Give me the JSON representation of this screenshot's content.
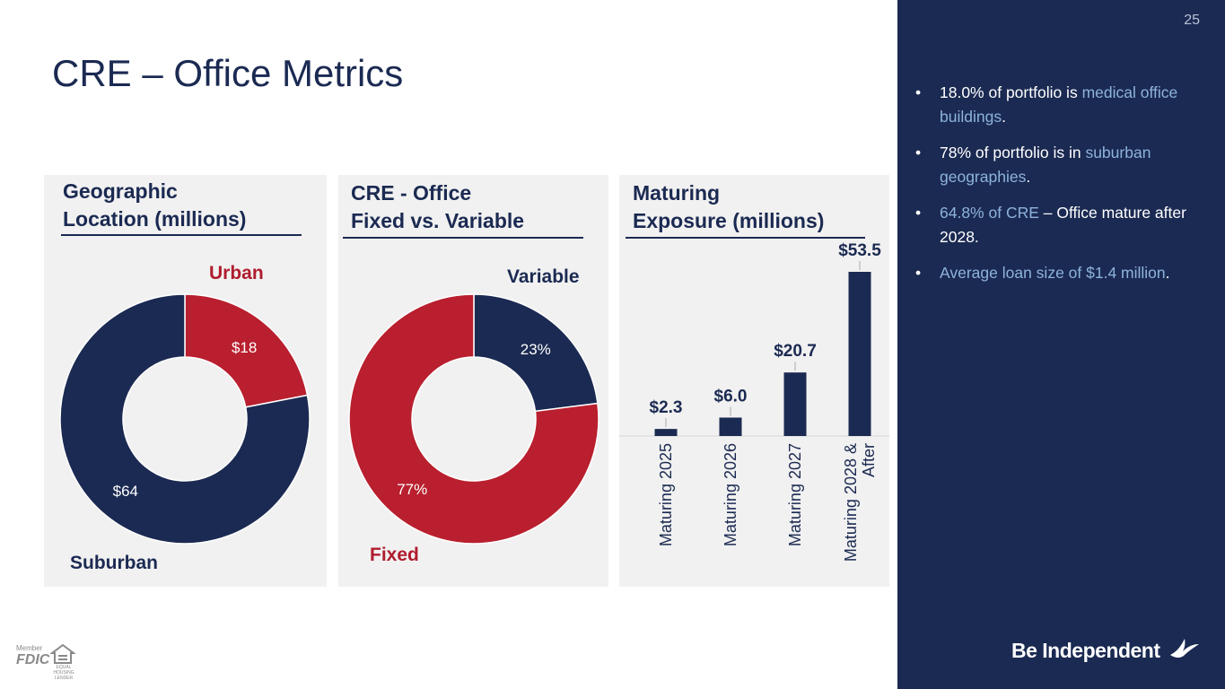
{
  "title": "CRE – Office Metrics",
  "page_number": "25",
  "panels": {
    "geo": {
      "title_line1": "Geographic",
      "title_line2": "Location (millions)",
      "label_urban": "Urban",
      "label_suburban": "Suburban"
    },
    "fixed": {
      "title_line1": "CRE - Office",
      "title_line2": "Fixed vs. Variable",
      "label_variable": "Variable",
      "label_fixed": "Fixed"
    },
    "maturing": {
      "title_line1": "Maturing",
      "title_line2": "Exposure (millions)"
    }
  },
  "chart_data": [
    {
      "type": "pie",
      "title": "Geographic Location (millions)",
      "categories": [
        "Urban",
        "Suburban"
      ],
      "values": [
        18,
        64
      ],
      "data_labels": [
        "$18",
        "$64"
      ],
      "colors": [
        "#b91f2e",
        "#1b2a52"
      ],
      "donut": true
    },
    {
      "type": "pie",
      "title": "CRE - Office Fixed vs. Variable",
      "categories": [
        "Variable",
        "Fixed"
      ],
      "values": [
        23,
        77
      ],
      "data_labels": [
        "23%",
        "77%"
      ],
      "colors": [
        "#1b2a52",
        "#b91f2e"
      ],
      "donut": true
    },
    {
      "type": "bar",
      "title": "Maturing Exposure (millions)",
      "categories": [
        "Maturing 2025",
        "Maturing 2026",
        "Maturing 2027",
        "Maturing 2028 & After"
      ],
      "values": [
        2.3,
        6.0,
        20.7,
        53.5
      ],
      "data_labels": [
        "$2.3",
        "$6.0",
        "$20.7",
        "$53.5"
      ],
      "color": "#1b2a52",
      "ylim": [
        0,
        53.5
      ]
    }
  ],
  "sidebar": {
    "bullet_char": "•",
    "bullets": [
      [
        {
          "t": "18.0% of portfolio is ",
          "hl": false
        },
        {
          "t": "medical office buildings",
          "hl": true
        },
        {
          "t": ".",
          "hl": false
        }
      ],
      [
        {
          "t": "78% of portfolio is in ",
          "hl": false
        },
        {
          "t": "suburban geographies",
          "hl": true
        },
        {
          "t": ".",
          "hl": false
        }
      ],
      [
        {
          "t": "64.8% of CRE",
          "hl": true
        },
        {
          "t": " – Office mature after 2028.",
          "hl": false
        }
      ],
      [
        {
          "t": "Average loan size of $1.4 million",
          "hl": true
        },
        {
          "t": ".",
          "hl": false
        }
      ]
    ],
    "brand": "Be Independent",
    "highlight_color": "#8db3dc"
  },
  "footer": {
    "fdic_member": "Member",
    "fdic": "FDIC",
    "ehl": "EQUAL HOUSING LENDER"
  }
}
